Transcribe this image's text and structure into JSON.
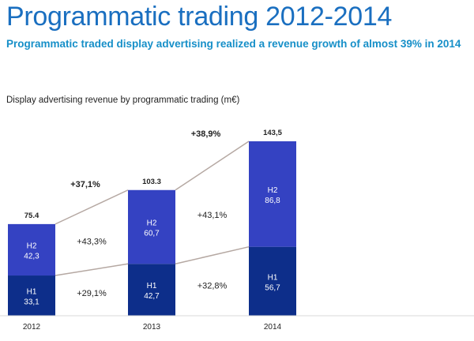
{
  "header": {
    "title": "Programmatic trading 2012-2014",
    "subtitle": "Programmatic traded display advertising realized a revenue growth of almost 39% in 2014"
  },
  "colors": {
    "h1": "#0d2e8a",
    "h2": "#3442c2",
    "connector": "#b5a8a2",
    "title": "#1a6fc0",
    "subtitle": "#168fc8"
  },
  "chart_data": {
    "type": "bar",
    "stacked": true,
    "title": "Display advertising revenue by programmatic trading (m€)",
    "categories": [
      "2012",
      "2013",
      "2014"
    ],
    "series": [
      {
        "name": "H1",
        "values": [
          33.1,
          42.7,
          56.7
        ],
        "value_labels": [
          "33,1",
          "42,7",
          "56,7"
        ]
      },
      {
        "name": "H2",
        "values": [
          42.3,
          60.7,
          86.8
        ],
        "value_labels": [
          "42,3",
          "60,7",
          "86,8"
        ]
      }
    ],
    "totals": [
      75.4,
      103.3,
      143.5
    ],
    "total_labels": [
      "75.4",
      "103.3",
      "143,5"
    ],
    "growth_annotations": {
      "h1": [
        "+29,1%",
        "+32,8%"
      ],
      "h2": [
        "+43,3%",
        "+43,1%"
      ],
      "total": [
        "+37,1%",
        "+38,9%"
      ]
    },
    "xlabel": "",
    "ylabel": "",
    "ylim": [
      0,
      143.5
    ],
    "grid": false,
    "legend": "none"
  }
}
